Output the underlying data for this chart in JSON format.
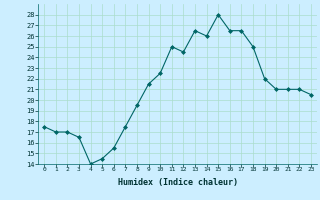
{
  "x": [
    0,
    1,
    2,
    3,
    4,
    5,
    6,
    7,
    8,
    9,
    10,
    11,
    12,
    13,
    14,
    15,
    16,
    17,
    18,
    19,
    20,
    21,
    22,
    23
  ],
  "y": [
    17.5,
    17.0,
    17.0,
    16.5,
    14.0,
    14.5,
    15.5,
    17.5,
    19.5,
    21.5,
    22.5,
    25.0,
    24.5,
    26.5,
    26.0,
    28.0,
    26.5,
    26.5,
    25.0,
    22.0,
    21.0,
    21.0,
    21.0,
    20.5
  ],
  "xlabel": "Humidex (Indice chaleur)",
  "ylabel": "",
  "ylim": [
    14,
    29
  ],
  "xlim": [
    -0.5,
    23.5
  ],
  "yticks": [
    14,
    15,
    16,
    17,
    18,
    19,
    20,
    21,
    22,
    23,
    24,
    25,
    26,
    27,
    28
  ],
  "xticks": [
    0,
    1,
    2,
    3,
    4,
    5,
    6,
    7,
    8,
    9,
    10,
    11,
    12,
    13,
    14,
    15,
    16,
    17,
    18,
    19,
    20,
    21,
    22,
    23
  ],
  "line_color": "#006666",
  "marker_color": "#006666",
  "bg_color": "#cceeff",
  "grid_color": "#aaddcc",
  "xlabel_color": "#003333"
}
